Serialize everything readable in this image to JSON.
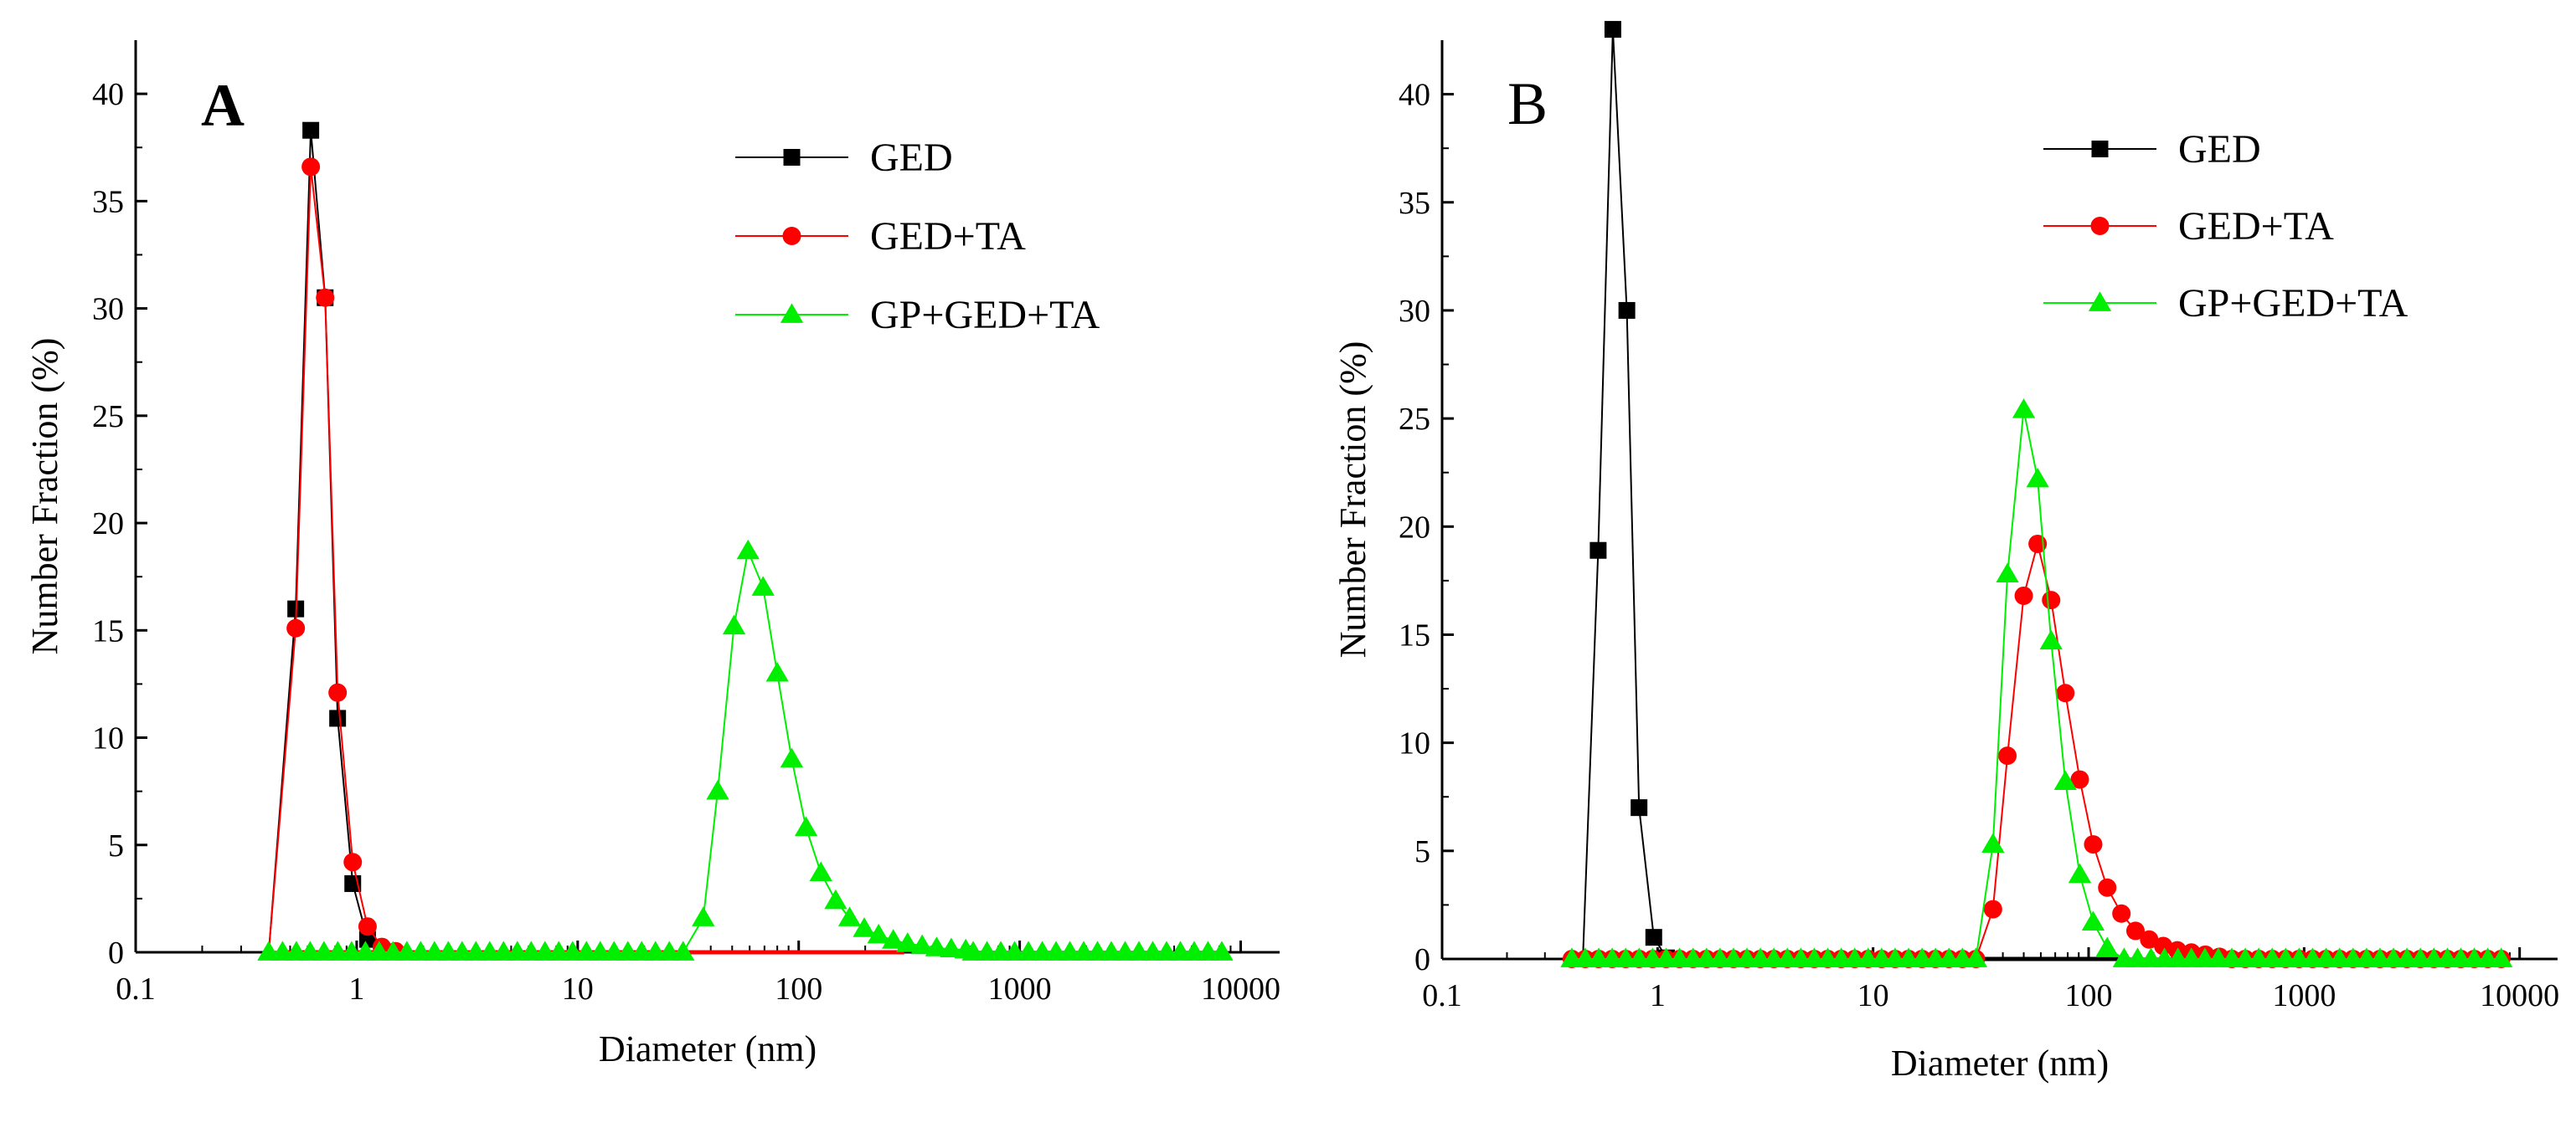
{
  "colors": {
    "GED": "#000000",
    "GED+TA": "#ff0000",
    "GP+GED+TA": "#00ee00",
    "axis": "#000000"
  },
  "chart_data": [
    {
      "type": "line",
      "panel_label": "A",
      "xscale": "log",
      "xlabel": "Diameter (nm)",
      "ylabel": "Number Fraction (%)",
      "xlim": [
        0.1,
        15000
      ],
      "ylim": [
        0,
        42.5
      ],
      "xticks": [
        0.1,
        1,
        10,
        100,
        1000,
        10000
      ],
      "xtick_labels": [
        "0.1",
        "1",
        "10",
        "100",
        "1000",
        "10000"
      ],
      "yticks": [
        0,
        5,
        10,
        15,
        20,
        25,
        30,
        35,
        40
      ],
      "ytick_labels": [
        "0",
        "5",
        "10",
        "15",
        "20",
        "25",
        "30",
        "35",
        "40"
      ],
      "legend": {
        "position": "top-right",
        "entries": [
          "GED",
          "GED+TA",
          "GP+GED+TA"
        ]
      },
      "series": [
        {
          "name": "GED",
          "marker": "square",
          "line_to_zero_range": [
            0.45,
            250
          ],
          "points": [
            [
              0.4,
              0
            ],
            [
              0.53,
              16.0
            ],
            [
              0.62,
              38.3
            ],
            [
              0.72,
              30.5
            ],
            [
              0.82,
              10.9
            ],
            [
              0.96,
              3.2
            ],
            [
              1.12,
              0.6
            ],
            [
              1.3,
              0.05
            ]
          ]
        },
        {
          "name": "GED+TA",
          "marker": "circle",
          "line_to_zero_range": [
            0.45,
            300
          ],
          "points": [
            [
              0.4,
              0
            ],
            [
              0.53,
              15.1
            ],
            [
              0.62,
              36.6
            ],
            [
              0.72,
              30.5
            ],
            [
              0.82,
              12.1
            ],
            [
              0.96,
              4.2
            ],
            [
              1.12,
              1.2
            ],
            [
              1.3,
              0.25
            ],
            [
              1.5,
              0.05
            ]
          ]
        },
        {
          "name": "GP+GED+TA",
          "marker": "triangle",
          "baseline_range": [
            0.4,
            9000
          ],
          "baseline_step": 0.0625,
          "points": [
            [
              37,
              1.6
            ],
            [
              43,
              7.5
            ],
            [
              51,
              15.2
            ],
            [
              59,
              18.7
            ],
            [
              69,
              17.0
            ],
            [
              80,
              13.0
            ],
            [
              93,
              9.0
            ],
            [
              108,
              5.8
            ],
            [
              126,
              3.7
            ],
            [
              147,
              2.4
            ],
            [
              170,
              1.6
            ],
            [
              198,
              1.1
            ],
            [
              230,
              0.8
            ],
            [
              268,
              0.55
            ],
            [
              311,
              0.4
            ],
            [
              362,
              0.3
            ],
            [
              421,
              0.2
            ],
            [
              490,
              0.15
            ],
            [
              570,
              0.1
            ]
          ]
        }
      ]
    },
    {
      "type": "line",
      "panel_label": "B",
      "xscale": "log",
      "xlabel": "Diameter (nm)",
      "ylabel": "Number Fraction (%)",
      "xlim": [
        0.1,
        15000
      ],
      "ylim": [
        0,
        42.5
      ],
      "xticks": [
        0.1,
        1,
        10,
        100,
        1000,
        10000
      ],
      "xtick_labels": [
        "0.1",
        "1",
        "10",
        "100",
        "1000",
        "10000"
      ],
      "yticks": [
        0,
        5,
        10,
        15,
        20,
        25,
        30,
        35,
        40
      ],
      "ytick_labels": [
        "0",
        "5",
        "10",
        "15",
        "20",
        "25",
        "30",
        "35",
        "40"
      ],
      "legend": {
        "position": "top-right",
        "entries": [
          "GED",
          "GED+TA",
          "GP+GED+TA"
        ]
      },
      "series": [
        {
          "name": "GED",
          "marker": "square",
          "line_to_zero_range": [
            0.45,
            150
          ],
          "points": [
            [
              0.45,
              0
            ],
            [
              0.53,
              18.9
            ],
            [
              0.62,
              43.0
            ],
            [
              0.72,
              30.0
            ],
            [
              0.82,
              7.0
            ],
            [
              0.96,
              1.0
            ],
            [
              1.1,
              0.05
            ]
          ]
        },
        {
          "name": "GED+TA",
          "marker": "circle",
          "baseline_range": [
            0.4,
            9000
          ],
          "baseline_step": 0.0625,
          "points": [
            [
              36,
              2.3
            ],
            [
              42,
              9.4
            ],
            [
              50,
              16.8
            ],
            [
              58,
              19.2
            ],
            [
              67,
              16.6
            ],
            [
              78,
              12.3
            ],
            [
              91,
              8.3
            ],
            [
              105,
              5.3
            ],
            [
              122,
              3.3
            ],
            [
              142,
              2.1
            ],
            [
              165,
              1.3
            ],
            [
              191,
              0.9
            ],
            [
              222,
              0.6
            ],
            [
              258,
              0.4
            ],
            [
              300,
              0.3
            ],
            [
              348,
              0.2
            ],
            [
              405,
              0.1
            ]
          ]
        },
        {
          "name": "GP+GED+TA",
          "marker": "triangle",
          "baseline_range": [
            0.4,
            9000
          ],
          "baseline_step": 0.0625,
          "points": [
            [
              36,
              5.3
            ],
            [
              42,
              17.8
            ],
            [
              50,
              25.4
            ],
            [
              58,
              22.2
            ],
            [
              67,
              14.7
            ],
            [
              78,
              8.2
            ],
            [
              91,
              3.9
            ],
            [
              105,
              1.7
            ],
            [
              122,
              0.5
            ]
          ]
        }
      ]
    }
  ]
}
